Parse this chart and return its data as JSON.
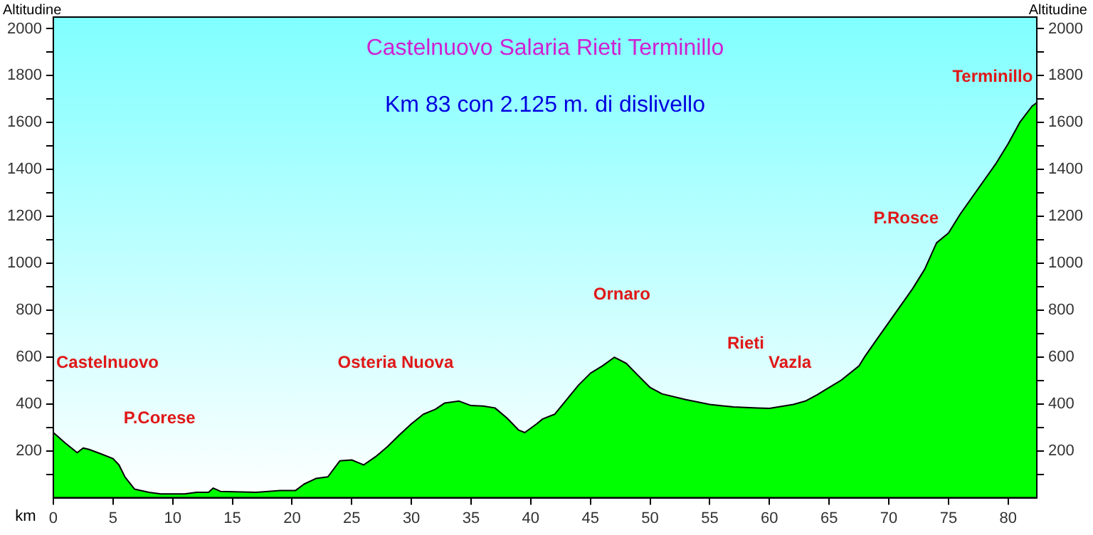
{
  "chart_data": {
    "type": "area",
    "title": "Castelnuovo Salaria Rieti Terminillo",
    "subtitle": "Km 83 con 2.125 m. di dislivello",
    "xlabel": "km",
    "ylabel": "Altitudine",
    "y2label": "Altitudine",
    "x": [
      0,
      1,
      2,
      2.5,
      3,
      4,
      5,
      5.5,
      6,
      6.8,
      8,
      9,
      11,
      12,
      13,
      13.4,
      14,
      17,
      19,
      20.3,
      21,
      22,
      23,
      24,
      25,
      26,
      27,
      28,
      29,
      30,
      31,
      32,
      32.8,
      34,
      35,
      36,
      37,
      38,
      39,
      39.5,
      40.5,
      41,
      42,
      43,
      44,
      45,
      46,
      47,
      48,
      49,
      50,
      51,
      53,
      55,
      57,
      59,
      60,
      62,
      63,
      64,
      65,
      66,
      67.5,
      68,
      69,
      70,
      71,
      72,
      73,
      74,
      75,
      76,
      77,
      78,
      79,
      80,
      81,
      82,
      82.4
    ],
    "series": [
      {
        "color": "#00ff00",
        "values": [
          278,
          233,
          192,
          212,
          206,
          187,
          167,
          140,
          89,
          37,
          23,
          16,
          16,
          23,
          23,
          41,
          27,
          23,
          31,
          31,
          58,
          82,
          89,
          157,
          161,
          140,
          175,
          218,
          268,
          315,
          356,
          377,
          404,
          412,
          393,
          391,
          383,
          340,
          288,
          278,
          315,
          336,
          356,
          418,
          480,
          531,
          562,
          599,
          573,
          521,
          470,
          443,
          418,
          398,
          387,
          383,
          381,
          398,
          412,
          439,
          470,
          501,
          562,
          603,
          676,
          748,
          820,
          892,
          974,
          1087,
          1129,
          1211,
          1283,
          1355,
          1427,
          1510,
          1603,
          1670,
          1685
        ]
      }
    ],
    "xlim": [
      0,
      82.4
    ],
    "xticks": [
      0,
      5,
      10,
      15,
      20,
      25,
      30,
      35,
      40,
      45,
      50,
      55,
      60,
      65,
      70,
      75,
      80
    ],
    "ylim": [
      0,
      2050
    ],
    "yticks": [
      {
        "value": 100,
        "label": null
      },
      200,
      {
        "value": 300,
        "label": null
      },
      400,
      {
        "value": 500,
        "label": null
      },
      600,
      {
        "value": 700,
        "label": null
      },
      800,
      {
        "value": 900,
        "label": null
      },
      1000,
      {
        "value": 1100,
        "label": null
      },
      1200,
      {
        "value": 1300,
        "label": null
      },
      1400,
      {
        "value": 1500,
        "label": null
      },
      1600,
      {
        "value": 1700,
        "label": null
      },
      1800,
      {
        "value": 1900,
        "label": null
      },
      2000
    ],
    "y2lim": [
      0,
      2050
    ],
    "y2ticks": [
      {
        "value": 100,
        "label": null
      },
      200,
      {
        "value": 300,
        "label": null
      },
      400,
      {
        "value": 500,
        "label": null
      },
      600,
      {
        "value": 700,
        "label": null
      },
      800,
      {
        "value": 900,
        "label": null
      },
      1000,
      {
        "value": 1100,
        "label": null
      },
      1200,
      {
        "value": 1300,
        "label": null
      },
      1400,
      {
        "value": 1500,
        "label": null
      },
      1600,
      {
        "value": 1700,
        "label": null
      },
      1800,
      {
        "value": 1900,
        "label": null
      },
      2000
    ],
    "legend": false,
    "marker": "none",
    "line_style": "solid",
    "annotations": [
      "Castelnuovo",
      "P.Corese",
      "Osteria Nuova",
      "Ornaro",
      "Rieti",
      "Vazla",
      "P.Rosce",
      "Terminillo"
    ]
  }
}
